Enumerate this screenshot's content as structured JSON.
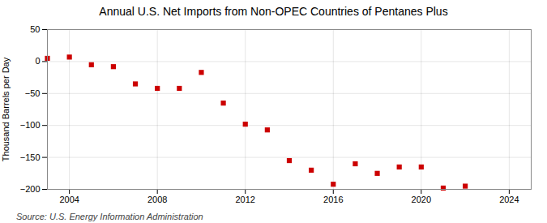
{
  "chart_data": {
    "type": "scatter",
    "title": "Annual U.S. Net Imports from Non-OPEC Countries of Pentanes Plus",
    "ylabel": "Thousand Barrels per Day",
    "caption": "Source: U.S. Energy Information Administration",
    "x": [
      2003,
      2004,
      2005,
      2006,
      2007,
      2008,
      2009,
      2010,
      2011,
      2012,
      2013,
      2014,
      2015,
      2016,
      2017,
      2018,
      2019,
      2020,
      2021,
      2022
    ],
    "values": [
      5,
      7,
      -5,
      -8,
      -35,
      -42,
      -42,
      -17,
      -65,
      -98,
      -107,
      -155,
      -170,
      -192,
      -160,
      -175,
      -165,
      -165,
      -198,
      -195
    ],
    "color": "#cc0000",
    "marker": "square",
    "xlim": [
      2003.0,
      2025.0
    ],
    "ylim": [
      -200,
      50
    ],
    "xticks": [
      2004,
      2008,
      2012,
      2016,
      2020,
      2024
    ],
    "yticks": [
      -200,
      -150,
      -100,
      -50,
      0,
      50
    ],
    "grid": true
  }
}
